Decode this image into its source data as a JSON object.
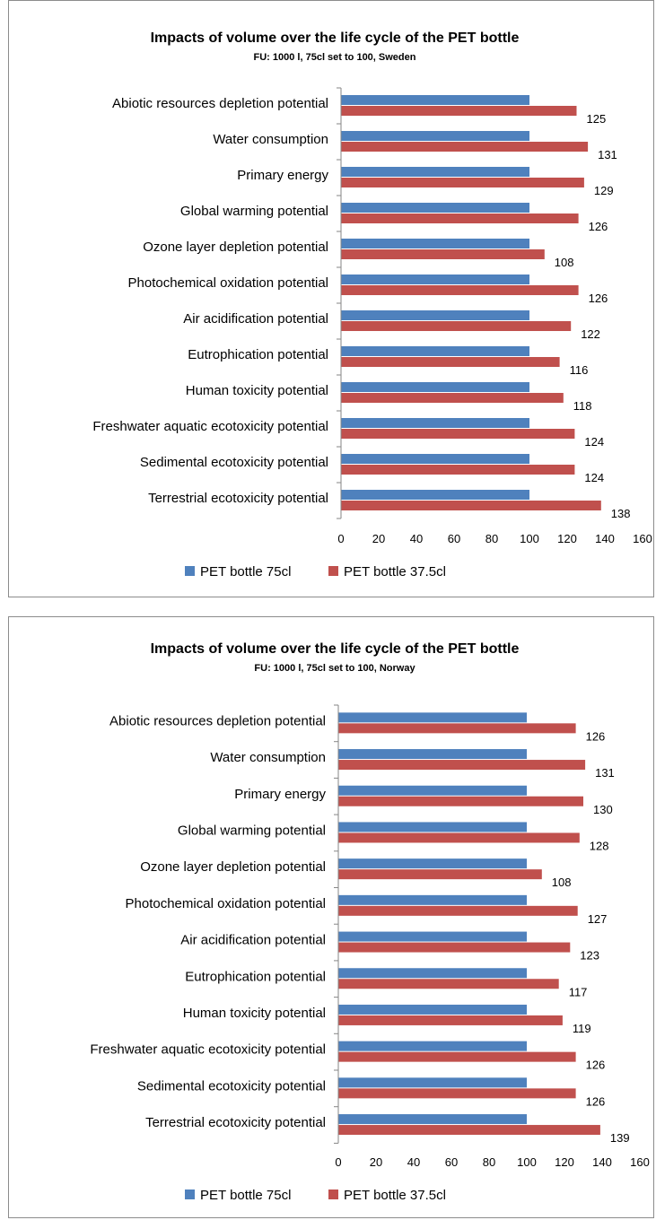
{
  "chart_data": [
    {
      "type": "bar",
      "orientation": "horizontal",
      "title": "Impacts of volume over the life cycle of the PET bottle",
      "subtitle": "FU: 1000 l, 75cl set to 100, Sweden",
      "categories": [
        "Abiotic resources depletion potential",
        "Water consumption",
        "Primary energy",
        "Global warming potential",
        "Ozone layer depletion potential",
        "Photochemical oxidation potential",
        "Air acidification  potential",
        "Eutrophication potential",
        "Human toxicity potential",
        "Freshwater aquatic ecotoxicity potential",
        "Sedimental ecotoxicity potential",
        "Terrestrial ecotoxicity potential"
      ],
      "series": [
        {
          "name": "PET bottle 75cl",
          "color": "#4f81bd",
          "values": [
            100,
            100,
            100,
            100,
            100,
            100,
            100,
            100,
            100,
            100,
            100,
            100
          ]
        },
        {
          "name": "PET bottle 37.5cl",
          "color": "#c0504d",
          "values": [
            125,
            131,
            129,
            126,
            108,
            126,
            122,
            116,
            118,
            124,
            124,
            138
          ]
        }
      ],
      "data_labels_series": 1,
      "xlim": [
        0,
        160
      ],
      "xticks": [
        0,
        20,
        40,
        60,
        80,
        100,
        120,
        140,
        160
      ],
      "grid": false,
      "legend": "bottom"
    },
    {
      "type": "bar",
      "orientation": "horizontal",
      "title": "Impacts of volume over the life cycle of the PET bottle",
      "subtitle": "FU: 1000 l, 75cl set to 100, Norway",
      "categories": [
        "Abiotic resources depletion potential",
        "Water consumption",
        "Primary energy",
        "Global warming potential",
        "Ozone layer depletion potential",
        "Photochemical oxidation potential",
        "Air acidification  potential",
        "Eutrophication potential",
        "Human toxicity potential",
        "Freshwater aquatic ecotoxicity potential",
        "Sedimental ecotoxicity potential",
        "Terrestrial ecotoxicity potential"
      ],
      "series": [
        {
          "name": "PET bottle 75cl",
          "color": "#4f81bd",
          "values": [
            100,
            100,
            100,
            100,
            100,
            100,
            100,
            100,
            100,
            100,
            100,
            100
          ]
        },
        {
          "name": "PET bottle 37.5cl",
          "color": "#c0504d",
          "values": [
            126,
            131,
            130,
            128,
            108,
            127,
            123,
            117,
            119,
            126,
            126,
            139
          ]
        }
      ],
      "data_labels_series": 1,
      "xlim": [
        0,
        160
      ],
      "xticks": [
        0,
        20,
        40,
        60,
        80,
        100,
        120,
        140,
        160
      ],
      "grid": false,
      "legend": "bottom"
    }
  ]
}
